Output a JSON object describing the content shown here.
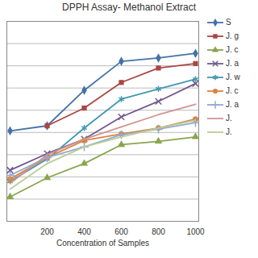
{
  "chart_data": {
    "type": "line",
    "title": "DPPH Assay- Methanol Extract",
    "x_label": "Concentration of Samples",
    "categories": [
      null,
      "200",
      "400",
      "600",
      "800",
      "1000"
    ],
    "ylim": [
      0,
      90
    ],
    "yticks": [
      0,
      10,
      20,
      30,
      40,
      50,
      60,
      70,
      80,
      90
    ],
    "grid": true,
    "legend": "right",
    "tick_labels": "x",
    "series": [
      {
        "name": "S",
        "color": "#4572a7",
        "marker": "diamond",
        "line_style": "solid",
        "values": [
          40.7,
          43,
          59,
          72,
          73.5,
          75.6
        ]
      },
      {
        "name": "J. g",
        "color": "#aa4643",
        "marker": "square",
        "line_style": "solid",
        "values": [
          null,
          43,
          51,
          62.5,
          69,
          71
        ]
      },
      {
        "name": "J. c",
        "color": "#89a54e",
        "marker": "triangle",
        "line_style": "solid",
        "values": [
          11,
          19.6,
          26,
          34.5,
          36,
          38
        ]
      },
      {
        "name": "J. a",
        "color": "#71588f",
        "marker": "times",
        "line_style": "solid",
        "values": [
          23,
          30.5,
          37,
          47,
          54,
          62
        ]
      },
      {
        "name": "J. w",
        "color": "#4198af",
        "marker": "asterisk",
        "line_style": "solid",
        "values": [
          18,
          28,
          42,
          55,
          59.6,
          64
        ]
      },
      {
        "name": "J. c",
        "color": "#db843d",
        "marker": "circle",
        "line_style": "solid",
        "values": [
          19,
          28.7,
          36.4,
          39.3,
          42,
          46
        ]
      },
      {
        "name": "J. a",
        "color": "#93a9cf",
        "marker": "plus",
        "line_style": "solid",
        "values": [
          20.7,
          28.7,
          33.5,
          39,
          41.5,
          44.4
        ]
      },
      {
        "name": "J.",
        "color": "#d19392",
        "marker": "none",
        "line_style": "solid",
        "values": [
          17,
          30,
          37,
          42.5,
          48,
          52.7
        ]
      },
      {
        "name": "J.",
        "color": "#b9cd96",
        "marker": "none",
        "line_style": "solid",
        "values": [
          14.5,
          26,
          33.5,
          38,
          42,
          45.5
        ]
      }
    ]
  }
}
